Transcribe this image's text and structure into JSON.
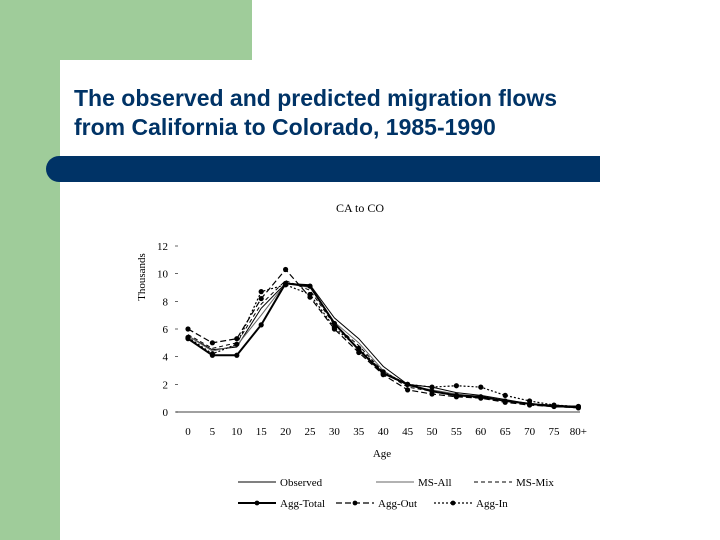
{
  "slide": {
    "title_line1": "The observed and predicted migration flows",
    "title_line2": "from California to Colorado, 1985-1990"
  },
  "colors": {
    "green": "#9fcc9a",
    "navy": "#003366"
  },
  "chart_data": {
    "type": "line",
    "title": "CA to CO",
    "xlabel": "Age",
    "ylabel": "Thousands",
    "categories": [
      "0",
      "5",
      "10",
      "15",
      "20",
      "25",
      "30",
      "35",
      "40",
      "45",
      "50",
      "55",
      "60",
      "65",
      "70",
      "75",
      "80+"
    ],
    "ylim": [
      0,
      12
    ],
    "yticks": [
      0,
      2,
      4,
      6,
      8,
      10,
      12
    ],
    "grid": false,
    "legend_position": "bottom",
    "series": [
      {
        "name": "Observed",
        "style": "solid-thin",
        "values": [
          5.5,
          4.5,
          4.7,
          7.5,
          9.3,
          9.2,
          6.8,
          5.3,
          3.3,
          2.0,
          1.8,
          1.4,
          1.2,
          0.9,
          0.6,
          0.5,
          0.4
        ]
      },
      {
        "name": "MS-All",
        "style": "solid-gray",
        "values": [
          5.5,
          4.4,
          4.8,
          7.0,
          9.3,
          9.0,
          6.5,
          5.0,
          3.0,
          1.9,
          1.6,
          1.3,
          1.1,
          0.8,
          0.6,
          0.4,
          0.3
        ]
      },
      {
        "name": "MS-Mix",
        "style": "dashed-short",
        "values": [
          5.6,
          4.6,
          5.0,
          7.8,
          9.5,
          8.8,
          6.3,
          4.8,
          2.9,
          1.8,
          1.5,
          1.2,
          1.0,
          0.8,
          0.6,
          0.4,
          0.3
        ]
      },
      {
        "name": "Agg-Total",
        "style": "solid-thick-dot",
        "values": [
          5.3,
          4.1,
          4.1,
          6.3,
          9.3,
          9.1,
          6.4,
          4.5,
          2.8,
          2.0,
          1.5,
          1.2,
          1.1,
          0.8,
          0.6,
          0.4,
          0.4
        ]
      },
      {
        "name": "Agg-Out",
        "style": "dashed-dot",
        "values": [
          6.0,
          5.0,
          5.3,
          8.2,
          10.3,
          8.3,
          6.0,
          4.3,
          2.7,
          1.6,
          1.3,
          1.1,
          1.0,
          0.7,
          0.5,
          0.4,
          0.3
        ]
      },
      {
        "name": "Agg-In",
        "style": "dotted-dot",
        "values": [
          5.4,
          4.2,
          4.9,
          8.7,
          9.2,
          8.5,
          6.1,
          4.6,
          2.9,
          2.0,
          1.8,
          1.9,
          1.8,
          1.2,
          0.8,
          0.5,
          0.4
        ]
      }
    ]
  }
}
